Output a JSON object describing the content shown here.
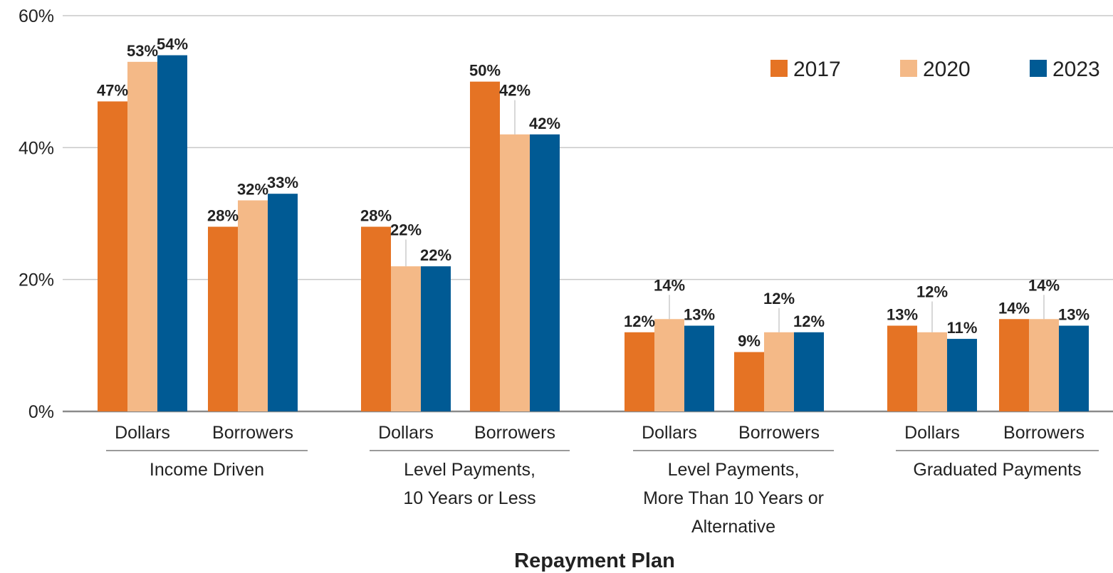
{
  "chart_data": {
    "type": "bar",
    "title": "",
    "xlabel": "Repayment Plan",
    "ylabel": "",
    "ylim": [
      0,
      60
    ],
    "yticks": [
      0,
      20,
      40,
      60
    ],
    "ytick_labels": [
      "0%",
      "20%",
      "40%",
      "60%"
    ],
    "grid": true,
    "legend_position": "top-right",
    "groups": [
      {
        "label": "Income Driven",
        "label_lines": [
          "Income Driven"
        ],
        "subcategories": [
          {
            "label": "Dollars",
            "values": [
              47,
              53,
              54
            ],
            "labels": [
              "47%",
              "53%",
              "54%"
            ]
          },
          {
            "label": "Borrowers",
            "values": [
              28,
              32,
              33
            ],
            "labels": [
              "28%",
              "32%",
              "33%"
            ]
          }
        ]
      },
      {
        "label": "Level Payments, 10 Years or Less",
        "label_lines": [
          "Level Payments,",
          "10 Years or Less"
        ],
        "subcategories": [
          {
            "label": "Dollars",
            "values": [
              28,
              22,
              22
            ],
            "labels": [
              "28%",
              "22%",
              "22%"
            ]
          },
          {
            "label": "Borrowers",
            "values": [
              50,
              42,
              42
            ],
            "labels": [
              "50%",
              "42%",
              "42%"
            ]
          }
        ]
      },
      {
        "label": "Level Payments, More Than 10 Years or Alternative",
        "label_lines": [
          "Level Payments,",
          "More Than 10 Years or",
          "Alternative"
        ],
        "subcategories": [
          {
            "label": "Dollars",
            "values": [
              12,
              14,
              13
            ],
            "labels": [
              "12%",
              "14%",
              "13%"
            ]
          },
          {
            "label": "Borrowers",
            "values": [
              9,
              12,
              12
            ],
            "labels": [
              "9%",
              "12%",
              "12%"
            ]
          }
        ]
      },
      {
        "label": "Graduated Payments",
        "label_lines": [
          "Graduated Payments"
        ],
        "subcategories": [
          {
            "label": "Dollars",
            "values": [
              13,
              12,
              11
            ],
            "labels": [
              "13%",
              "12%",
              "11%"
            ]
          },
          {
            "label": "Borrowers",
            "values": [
              14,
              14,
              13
            ],
            "labels": [
              "14%",
              "14%",
              "13%"
            ]
          }
        ]
      }
    ],
    "series": [
      {
        "name": "2017",
        "color": "#e57324"
      },
      {
        "name": "2020",
        "color": "#f4b987"
      },
      {
        "name": "2023",
        "color": "#005a94"
      }
    ]
  }
}
